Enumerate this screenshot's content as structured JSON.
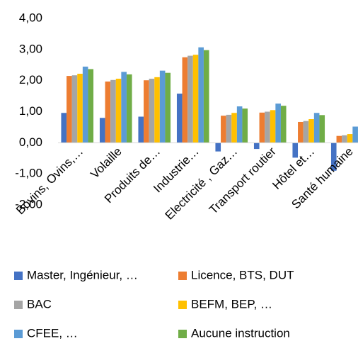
{
  "chart_data": {
    "type": "bar",
    "categories": [
      "Bovins, Ovins,…",
      "Volaille",
      "Produits de…",
      "Industrie…",
      "Electricité , Gaz…",
      "Transport routier",
      "Hôtel et…",
      "Santé humaine"
    ],
    "series": [
      {
        "name": "Master, Ingénieur, …",
        "color": "#4472c4",
        "values": [
          0.96,
          0.8,
          0.84,
          1.58,
          -0.28,
          -0.2,
          -0.48,
          -0.9
        ]
      },
      {
        "name": "Licence, BTS, DUT",
        "color": "#ed7d31",
        "values": [
          2.15,
          1.97,
          2.01,
          2.75,
          0.87,
          0.97,
          0.67,
          0.22
        ]
      },
      {
        "name": "BAC",
        "color": "#a5a5a5",
        "values": [
          2.17,
          2.02,
          2.06,
          2.8,
          0.9,
          1.0,
          0.7,
          0.24
        ]
      },
      {
        "name": "BEFM, BEP, …",
        "color": "#ffc000",
        "values": [
          2.22,
          2.06,
          2.11,
          2.83,
          0.96,
          1.05,
          0.76,
          0.28
        ]
      },
      {
        "name": "CFEE, …",
        "color": "#5b9bd5",
        "values": [
          2.45,
          2.28,
          2.32,
          3.07,
          1.17,
          1.26,
          0.96,
          0.52
        ]
      },
      {
        "name": "Aucune instruction",
        "color": "#70ad47",
        "values": [
          2.37,
          2.2,
          2.25,
          2.98,
          1.1,
          1.19,
          0.89,
          0.43
        ]
      }
    ],
    "ylim": [
      -2,
      4
    ],
    "yticks": [
      {
        "value": -2,
        "label": "-2,00"
      },
      {
        "value": -1,
        "label": "-1,00"
      },
      {
        "value": 0,
        "label": "0,00"
      },
      {
        "value": 1,
        "label": "1,00"
      },
      {
        "value": 2,
        "label": "2,00"
      },
      {
        "value": 3,
        "label": "3,00"
      },
      {
        "value": 4,
        "label": "4,00"
      }
    ],
    "grid": false,
    "legend": "bottom"
  }
}
